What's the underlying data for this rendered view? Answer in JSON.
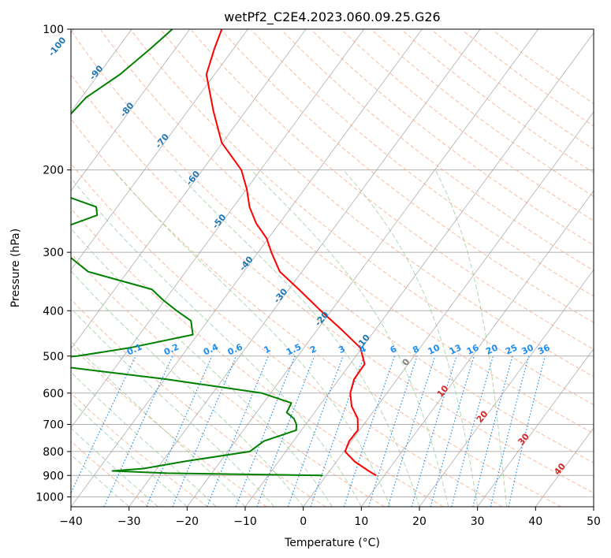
{
  "chart_data": {
    "type": "line",
    "subtype": "skew-T log-P diagram",
    "title": "wetPf2_C2E4.2023.060.09.25.G26",
    "xlabel": "Temperature (°C)",
    "ylabel": "Pressure (hPa)",
    "xlim": [
      -40,
      50
    ],
    "ylim": [
      1050,
      100
    ],
    "y_scale": "log",
    "grid": true,
    "x_ticks": [
      -40,
      -30,
      -20,
      -10,
      0,
      10,
      20,
      30,
      40,
      50
    ],
    "x_tick_labels": [
      "−40",
      "−30",
      "−20",
      "−10",
      "0",
      "10",
      "20",
      "30",
      "40",
      "50"
    ],
    "y_ticks": [
      100,
      200,
      300,
      400,
      500,
      600,
      700,
      800,
      900,
      1000
    ],
    "y_tick_labels": [
      "100",
      "200",
      "300",
      "400",
      "500",
      "600",
      "700",
      "800",
      "900",
      "1000"
    ],
    "series": [
      {
        "color": "#ff0000",
        "pressure": [
          100,
          110,
          125,
          150,
          175,
          200,
          220,
          240,
          260,
          280,
          300,
          330,
          360,
          400,
          440,
          480,
          520,
          560,
          600,
          640,
          680,
          720,
          760,
          800,
          840,
          880,
          900
        ],
        "values": [
          -74.5,
          -73.3,
          -71.4,
          -65.5,
          -60.1,
          -53.3,
          -49.9,
          -47.2,
          -44,
          -40.3,
          -37.7,
          -33.8,
          -28.3,
          -21.8,
          -15.7,
          -10.3,
          -7.5,
          -7.4,
          -6.3,
          -4.4,
          -1.8,
          -0.3,
          -0.4,
          0.2,
          3.1,
          6.7,
          8.6
        ]
      },
      {
        "color": "#008000",
        "pressure": [
          100,
          110,
          125,
          140,
          160,
          180,
          200,
          215,
          230,
          240,
          250,
          270,
          285,
          300,
          330,
          360,
          380,
          400,
          420,
          450,
          480,
          500,
          515,
          530,
          560,
          600,
          630,
          650,
          660,
          680,
          700,
          720,
          760,
          800,
          840,
          870,
          880,
          890,
          900
        ],
        "values": [
          -83,
          -84.3,
          -86.3,
          -89.2,
          -90.1,
          -92.5,
          -92.6,
          -86.6,
          -78.8,
          -73.6,
          -72.4,
          -77.8,
          -77.7,
          -73.4,
          -66.8,
          -53.6,
          -50.2,
          -46.6,
          -42.9,
          -40.8,
          -50,
          -58,
          -70.8,
          -57.3,
          -39.9,
          -21.5,
          -15.2,
          -14.9,
          -14.8,
          -12.8,
          -11.6,
          -10.9,
          -15.1,
          -16.2,
          -26.2,
          -32.3,
          -37.4,
          -27.7,
          -0.6
        ]
      }
    ],
    "dry_adiabat_labels": [
      "-100",
      "-90",
      "-80",
      "-70",
      "-60",
      "-50",
      "-40",
      "-30",
      "-20",
      "-10",
      "0",
      "10",
      "20",
      "30",
      "40"
    ],
    "mixing_ratio_labels": [
      "0.1",
      "0.2",
      "0.4",
      "0.6",
      "1",
      "1.5",
      "2",
      "3",
      "4",
      "6",
      "8",
      "10",
      "13",
      "16",
      "20",
      "25",
      "30",
      "36"
    ],
    "colors": {
      "temperature": "#ff0000",
      "dewpoint": "#008000",
      "grid": "#b0b0b0",
      "isotherm": "#9a9a9a",
      "dry_adiabat": "#f4a582",
      "moist_adiabat": "#8fc98f",
      "mixing_ratio": "#1f8ef0",
      "label_blue": "#1f77b4",
      "label_red": "#d62728",
      "label_gray": "#7f7f7f"
    }
  }
}
